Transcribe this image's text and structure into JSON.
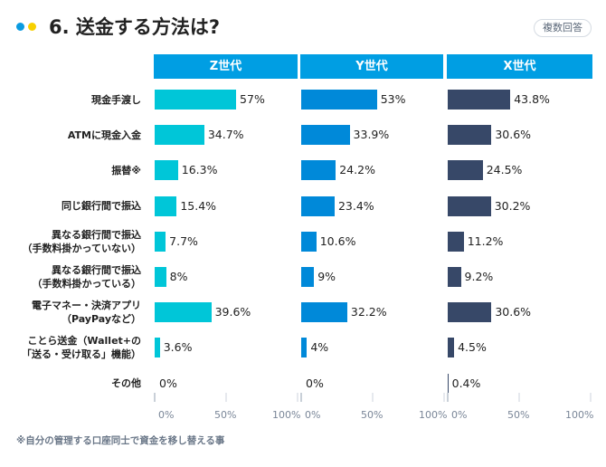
{
  "header": {
    "title": "6. 送金する方法は?",
    "badge": "複数回答",
    "dot_colors": [
      "#0a9be0",
      "#f7d000"
    ]
  },
  "chart_data": {
    "type": "bar",
    "orientation": "horizontal",
    "title": "6. 送金する方法は?",
    "categories": [
      [
        "現金手渡し"
      ],
      [
        "ATMに現金入金"
      ],
      [
        "振替※"
      ],
      [
        "同じ銀行間で振込"
      ],
      [
        "異なる銀行間で振込",
        "（手数料掛かっていない）"
      ],
      [
        "異なる銀行間で振込",
        "（手数料掛かっている）"
      ],
      [
        "電子マネー・決済アプリ",
        "（PayPayなど）"
      ],
      [
        "ことら送金（Wallet+の",
        "「送る・受け取る」機能）"
      ],
      [
        "その他"
      ]
    ],
    "series": [
      {
        "name": "Z世代",
        "color": "#00c6d8",
        "values": [
          57,
          34.7,
          16.3,
          15.4,
          7.7,
          8,
          39.6,
          3.6,
          0
        ]
      },
      {
        "name": "Y世代",
        "color": "#0089d9",
        "values": [
          53,
          33.9,
          24.2,
          23.4,
          10.6,
          9,
          32.2,
          4,
          0
        ]
      },
      {
        "name": "X世代",
        "color": "#374868",
        "values": [
          43.8,
          30.6,
          24.5,
          30.2,
          11.2,
          9.2,
          30.6,
          4.5,
          0.4
        ]
      }
    ],
    "value_labels": [
      [
        "57%",
        "34.7%",
        "16.3%",
        "15.4%",
        "7.7%",
        "8%",
        "39.6%",
        "3.6%",
        "0%"
      ],
      [
        "53%",
        "33.9%",
        "24.2%",
        "23.4%",
        "10.6%",
        "9%",
        "32.2%",
        "4%",
        "0%"
      ],
      [
        "43.8%",
        "30.6%",
        "24.5%",
        "30.2%",
        "11.2%",
        "9.2%",
        "30.6%",
        "4.5%",
        "0.4%"
      ]
    ],
    "xlim": [
      0,
      100
    ],
    "xticks": [
      "0%",
      "50%",
      "100%"
    ],
    "grid": false
  },
  "footnote": "※自分の管理する口座同士で資金を移し替える事"
}
